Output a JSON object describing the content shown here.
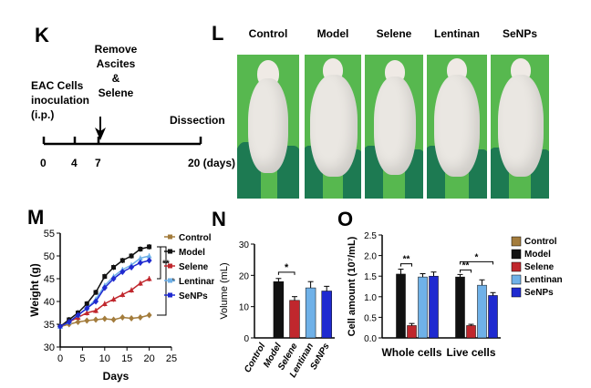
{
  "panels": {
    "k": "K",
    "l": "L",
    "m": "M",
    "n": "N",
    "o": "O"
  },
  "timeline": {
    "inoculation_label": "EAC Cells\ninoculation\n(i.p.)",
    "remove_label": "Remove\nAscites\n&\nSelene",
    "dissection_label": "Dissection",
    "ticks": [
      "0",
      "4",
      "7",
      "20 (days)"
    ]
  },
  "photos": {
    "headers": [
      "Control",
      "Model",
      "Selene",
      "Lentinan",
      "SeNPs"
    ]
  },
  "colors": {
    "control": "#a37c3c",
    "model": "#111111",
    "selene": "#c0272d",
    "lentinan": "#6fb1e8",
    "senps": "#1f2ad0",
    "photo_bg": "#57b84f"
  },
  "chart_data": [
    {
      "id": "M",
      "type": "line",
      "xlabel": "Days",
      "ylabel": "Weight (g)",
      "xlim": [
        0,
        25
      ],
      "ylim": [
        30,
        55
      ],
      "x_ticks": [
        0,
        5,
        10,
        15,
        20,
        25
      ],
      "y_ticks": [
        30,
        35,
        40,
        45,
        50,
        55
      ],
      "x": [
        0,
        2,
        4,
        6,
        8,
        10,
        12,
        14,
        16,
        18,
        20
      ],
      "series": [
        {
          "name": "Control",
          "key": "control",
          "values": [
            34.5,
            35.0,
            35.5,
            35.8,
            36.0,
            36.2,
            36.0,
            36.5,
            36.3,
            36.5,
            37.0
          ]
        },
        {
          "name": "Model",
          "key": "model",
          "values": [
            34.5,
            36.0,
            37.5,
            39.5,
            42.0,
            45.5,
            47.5,
            49.0,
            50.0,
            51.5,
            52.0
          ]
        },
        {
          "name": "Selene",
          "key": "selene",
          "values": [
            34.5,
            35.5,
            36.5,
            37.5,
            38.0,
            39.5,
            40.5,
            41.5,
            42.5,
            44.0,
            45.0
          ]
        },
        {
          "name": "Lentinan",
          "key": "lentinan",
          "values": [
            34.5,
            35.5,
            37.0,
            38.5,
            40.5,
            43.5,
            45.5,
            47.0,
            48.0,
            49.5,
            50.0
          ]
        },
        {
          "name": "SeNPs",
          "key": "senps",
          "values": [
            34.5,
            35.5,
            37.0,
            38.5,
            40.0,
            43.0,
            45.0,
            46.5,
            47.5,
            48.5,
            49.0
          ]
        }
      ],
      "annotations": [
        "**",
        "**"
      ]
    },
    {
      "id": "N",
      "type": "bar",
      "ylabel": "Volume (mL)",
      "ylim": [
        0,
        30
      ],
      "y_ticks": [
        0,
        10,
        20,
        30
      ],
      "categories": [
        "Control",
        "Model",
        "Selene",
        "Lentinan",
        "SeNPs"
      ],
      "keys": [
        "control",
        "model",
        "selene",
        "lentinan",
        "senps"
      ],
      "values": [
        0,
        18,
        12,
        16,
        15
      ],
      "errors": [
        0,
        1.0,
        1.2,
        2.0,
        1.5
      ],
      "annotations": [
        "*"
      ]
    },
    {
      "id": "O",
      "type": "bar",
      "ylabel": "Cell amount (10⁷/mL)",
      "ylim": [
        0,
        2.5
      ],
      "y_ticks": [
        0.0,
        0.5,
        1.0,
        1.5,
        2.0,
        2.5
      ],
      "categories": [
        "Whole cells",
        "Live cells"
      ],
      "series": [
        {
          "name": "Control",
          "key": "control",
          "values": [
            0,
            0
          ],
          "errors": [
            0,
            0
          ]
        },
        {
          "name": "Model",
          "key": "model",
          "values": [
            1.55,
            1.48
          ],
          "errors": [
            0.12,
            0.06
          ]
        },
        {
          "name": "Selene",
          "key": "selene",
          "values": [
            0.3,
            0.3
          ],
          "errors": [
            0.05,
            0.03
          ]
        },
        {
          "name": "Lentinan",
          "key": "lentinan",
          "values": [
            1.48,
            1.28
          ],
          "errors": [
            0.08,
            0.13
          ]
        },
        {
          "name": "SeNPs",
          "key": "senps",
          "values": [
            1.5,
            1.03
          ],
          "errors": [
            0.1,
            0.07
          ]
        }
      ],
      "annotations": [
        "**",
        "**",
        "*"
      ]
    }
  ]
}
